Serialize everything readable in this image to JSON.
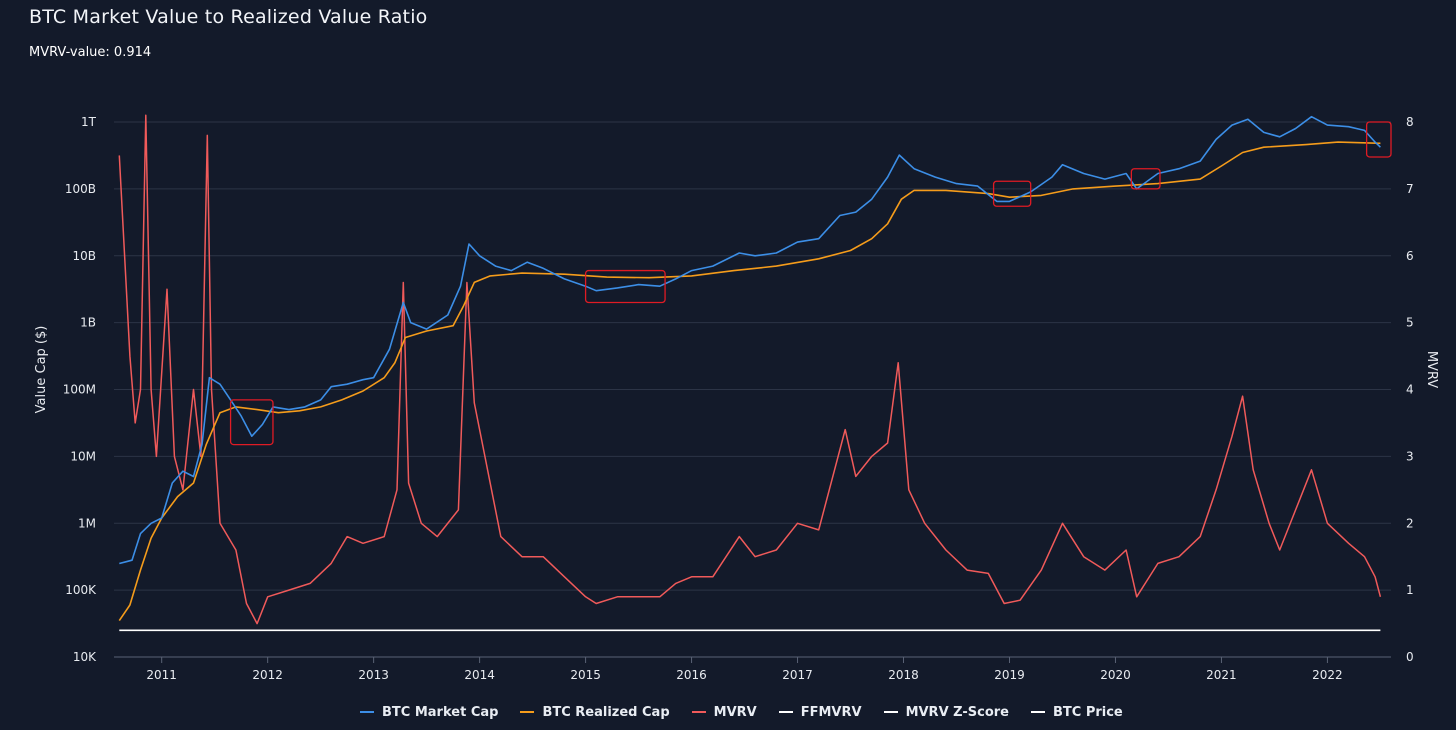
{
  "header": {
    "title": "BTC Market Value to Realized Value Ratio",
    "subtitle": "MVRV-value: 0.914"
  },
  "colors": {
    "background": "#131a2a",
    "grid": "#2c3446",
    "market_cap": "#3c8ee6",
    "realized_cap": "#f59c1b",
    "mvrv": "#f05a5a",
    "ffmvrv": "#ffffff",
    "zscore": "#ffffff",
    "price": "#ffffff",
    "highlight": "#e01b24"
  },
  "chart_data": {
    "type": "line",
    "title": "BTC Market Value to Realized Value Ratio",
    "xlabel": "",
    "ylabel_left": "Value Cap ($)",
    "ylabel_right": "MVRV",
    "y_left_scale": "log",
    "y_left_range": [
      10000,
      1000000000000
    ],
    "y_left_ticks": [
      {
        "value": 10000,
        "label": "10K"
      },
      {
        "value": 100000,
        "label": "100K"
      },
      {
        "value": 1000000,
        "label": "1M"
      },
      {
        "value": 10000000,
        "label": "10M"
      },
      {
        "value": 100000000,
        "label": "100M"
      },
      {
        "value": 1000000000,
        "label": "1B"
      },
      {
        "value": 10000000000,
        "label": "10B"
      },
      {
        "value": 100000000000,
        "label": "100B"
      },
      {
        "value": 1000000000000,
        "label": "1T"
      }
    ],
    "y_right_range": [
      0,
      8
    ],
    "y_right_ticks": [
      0,
      1,
      2,
      3,
      4,
      5,
      6,
      7,
      8
    ],
    "x_range": [
      2010.55,
      2022.6
    ],
    "x_ticks": [
      "2011",
      "2012",
      "2013",
      "2014",
      "2015",
      "2016",
      "2017",
      "2018",
      "2019",
      "2020",
      "2021",
      "2022"
    ],
    "series": [
      {
        "name": "BTC Market Cap",
        "axis": "left",
        "points": [
          [
            2010.6,
            250000
          ],
          [
            2010.72,
            280000
          ],
          [
            2010.8,
            700000
          ],
          [
            2010.9,
            1000000
          ],
          [
            2011.0,
            1200000
          ],
          [
            2011.1,
            4000000
          ],
          [
            2011.2,
            6000000
          ],
          [
            2011.3,
            5000000
          ],
          [
            2011.38,
            15000000
          ],
          [
            2011.45,
            150000000
          ],
          [
            2011.55,
            120000000
          ],
          [
            2011.65,
            70000000
          ],
          [
            2011.75,
            40000000
          ],
          [
            2011.85,
            20000000
          ],
          [
            2011.95,
            30000000
          ],
          [
            2012.05,
            55000000
          ],
          [
            2012.2,
            50000000
          ],
          [
            2012.35,
            55000000
          ],
          [
            2012.5,
            70000000
          ],
          [
            2012.6,
            110000000
          ],
          [
            2012.75,
            120000000
          ],
          [
            2012.9,
            140000000
          ],
          [
            2013.0,
            150000000
          ],
          [
            2013.15,
            400000000
          ],
          [
            2013.28,
            2000000000
          ],
          [
            2013.35,
            1000000000
          ],
          [
            2013.5,
            800000000
          ],
          [
            2013.7,
            1300000000
          ],
          [
            2013.82,
            3500000000
          ],
          [
            2013.9,
            15000000000
          ],
          [
            2014.0,
            10000000000
          ],
          [
            2014.15,
            7000000000
          ],
          [
            2014.3,
            6000000000
          ],
          [
            2014.45,
            8000000000
          ],
          [
            2014.6,
            6500000000
          ],
          [
            2014.8,
            4500000000
          ],
          [
            2015.0,
            3500000000
          ],
          [
            2015.1,
            3000000000
          ],
          [
            2015.3,
            3300000000
          ],
          [
            2015.5,
            3700000000
          ],
          [
            2015.7,
            3500000000
          ],
          [
            2015.85,
            4500000000
          ],
          [
            2016.0,
            6000000000
          ],
          [
            2016.2,
            7000000000
          ],
          [
            2016.45,
            11000000000
          ],
          [
            2016.6,
            10000000000
          ],
          [
            2016.8,
            11000000000
          ],
          [
            2017.0,
            16000000000
          ],
          [
            2017.2,
            18000000000
          ],
          [
            2017.4,
            40000000000
          ],
          [
            2017.55,
            45000000000
          ],
          [
            2017.7,
            70000000000
          ],
          [
            2017.85,
            150000000000
          ],
          [
            2017.96,
            320000000000
          ],
          [
            2018.1,
            200000000000
          ],
          [
            2018.3,
            150000000000
          ],
          [
            2018.5,
            120000000000
          ],
          [
            2018.7,
            110000000000
          ],
          [
            2018.88,
            65000000000
          ],
          [
            2019.0,
            65000000000
          ],
          [
            2019.2,
            90000000000
          ],
          [
            2019.4,
            150000000000
          ],
          [
            2019.5,
            230000000000
          ],
          [
            2019.7,
            170000000000
          ],
          [
            2019.9,
            140000000000
          ],
          [
            2020.1,
            170000000000
          ],
          [
            2020.2,
            100000000000
          ],
          [
            2020.4,
            170000000000
          ],
          [
            2020.6,
            200000000000
          ],
          [
            2020.8,
            260000000000
          ],
          [
            2020.95,
            550000000000
          ],
          [
            2021.1,
            900000000000
          ],
          [
            2021.25,
            1100000000000
          ],
          [
            2021.4,
            700000000000
          ],
          [
            2021.55,
            600000000000
          ],
          [
            2021.7,
            800000000000
          ],
          [
            2021.85,
            1200000000000
          ],
          [
            2022.0,
            900000000000
          ],
          [
            2022.2,
            850000000000
          ],
          [
            2022.35,
            750000000000
          ],
          [
            2022.45,
            500000000000
          ],
          [
            2022.5,
            420000000000
          ]
        ]
      },
      {
        "name": "BTC Realized Cap",
        "axis": "left",
        "points": [
          [
            2010.6,
            35000
          ],
          [
            2010.7,
            60000
          ],
          [
            2010.8,
            200000
          ],
          [
            2010.9,
            600000
          ],
          [
            2011.0,
            1200000
          ],
          [
            2011.15,
            2500000
          ],
          [
            2011.3,
            4000000
          ],
          [
            2011.42,
            15000000
          ],
          [
            2011.55,
            45000000
          ],
          [
            2011.7,
            55000000
          ],
          [
            2011.9,
            50000000
          ],
          [
            2012.1,
            45000000
          ],
          [
            2012.3,
            48000000
          ],
          [
            2012.5,
            55000000
          ],
          [
            2012.7,
            70000000
          ],
          [
            2012.9,
            95000000
          ],
          [
            2013.1,
            150000000
          ],
          [
            2013.2,
            250000000
          ],
          [
            2013.3,
            600000000
          ],
          [
            2013.5,
            750000000
          ],
          [
            2013.75,
            900000000
          ],
          [
            2013.85,
            1800000000
          ],
          [
            2013.95,
            4000000000
          ],
          [
            2014.1,
            5000000000
          ],
          [
            2014.4,
            5500000000
          ],
          [
            2014.8,
            5300000000
          ],
          [
            2015.2,
            4800000000
          ],
          [
            2015.6,
            4700000000
          ],
          [
            2016.0,
            5000000000
          ],
          [
            2016.4,
            6000000000
          ],
          [
            2016.8,
            7000000000
          ],
          [
            2017.2,
            9000000000
          ],
          [
            2017.5,
            12000000000
          ],
          [
            2017.7,
            18000000000
          ],
          [
            2017.85,
            30000000000
          ],
          [
            2017.98,
            70000000000
          ],
          [
            2018.1,
            95000000000
          ],
          [
            2018.4,
            95000000000
          ],
          [
            2018.8,
            85000000000
          ],
          [
            2019.0,
            75000000000
          ],
          [
            2019.3,
            80000000000
          ],
          [
            2019.6,
            100000000000
          ],
          [
            2020.0,
            110000000000
          ],
          [
            2020.4,
            120000000000
          ],
          [
            2020.8,
            140000000000
          ],
          [
            2021.0,
            220000000000
          ],
          [
            2021.2,
            350000000000
          ],
          [
            2021.4,
            420000000000
          ],
          [
            2021.8,
            460000000000
          ],
          [
            2022.1,
            500000000000
          ],
          [
            2022.5,
            480000000000
          ]
        ]
      },
      {
        "name": "MVRV",
        "axis": "right",
        "points": [
          [
            2010.6,
            7.5
          ],
          [
            2010.7,
            4.5
          ],
          [
            2010.75,
            3.5
          ],
          [
            2010.8,
            4.0
          ],
          [
            2010.85,
            8.1
          ],
          [
            2010.9,
            4.0
          ],
          [
            2010.95,
            3.0
          ],
          [
            2011.05,
            5.5
          ],
          [
            2011.12,
            3.0
          ],
          [
            2011.2,
            2.5
          ],
          [
            2011.3,
            4.0
          ],
          [
            2011.37,
            3.0
          ],
          [
            2011.43,
            7.8
          ],
          [
            2011.47,
            4.0
          ],
          [
            2011.55,
            2.0
          ],
          [
            2011.7,
            1.6
          ],
          [
            2011.8,
            0.8
          ],
          [
            2011.9,
            0.5
          ],
          [
            2012.0,
            0.9
          ],
          [
            2012.2,
            1.0
          ],
          [
            2012.4,
            1.1
          ],
          [
            2012.6,
            1.4
          ],
          [
            2012.75,
            1.8
          ],
          [
            2012.9,
            1.7
          ],
          [
            2013.1,
            1.8
          ],
          [
            2013.22,
            2.5
          ],
          [
            2013.28,
            5.6
          ],
          [
            2013.33,
            2.6
          ],
          [
            2013.45,
            2.0
          ],
          [
            2013.6,
            1.8
          ],
          [
            2013.8,
            2.2
          ],
          [
            2013.88,
            5.6
          ],
          [
            2013.95,
            3.8
          ],
          [
            2014.05,
            3.0
          ],
          [
            2014.2,
            1.8
          ],
          [
            2014.4,
            1.5
          ],
          [
            2014.6,
            1.5
          ],
          [
            2014.8,
            1.2
          ],
          [
            2015.0,
            0.9
          ],
          [
            2015.1,
            0.8
          ],
          [
            2015.3,
            0.9
          ],
          [
            2015.5,
            0.9
          ],
          [
            2015.7,
            0.9
          ],
          [
            2015.85,
            1.1
          ],
          [
            2016.0,
            1.2
          ],
          [
            2016.2,
            1.2
          ],
          [
            2016.45,
            1.8
          ],
          [
            2016.6,
            1.5
          ],
          [
            2016.8,
            1.6
          ],
          [
            2017.0,
            2.0
          ],
          [
            2017.2,
            1.9
          ],
          [
            2017.45,
            3.4
          ],
          [
            2017.55,
            2.7
          ],
          [
            2017.7,
            3.0
          ],
          [
            2017.85,
            3.2
          ],
          [
            2017.95,
            4.4
          ],
          [
            2018.05,
            2.5
          ],
          [
            2018.2,
            2.0
          ],
          [
            2018.4,
            1.6
          ],
          [
            2018.6,
            1.3
          ],
          [
            2018.8,
            1.25
          ],
          [
            2018.95,
            0.8
          ],
          [
            2019.1,
            0.85
          ],
          [
            2019.3,
            1.3
          ],
          [
            2019.5,
            2.0
          ],
          [
            2019.7,
            1.5
          ],
          [
            2019.9,
            1.3
          ],
          [
            2020.1,
            1.6
          ],
          [
            2020.2,
            0.9
          ],
          [
            2020.4,
            1.4
          ],
          [
            2020.6,
            1.5
          ],
          [
            2020.8,
            1.8
          ],
          [
            2020.95,
            2.5
          ],
          [
            2021.1,
            3.3
          ],
          [
            2021.2,
            3.9
          ],
          [
            2021.3,
            2.8
          ],
          [
            2021.45,
            2.0
          ],
          [
            2021.55,
            1.6
          ],
          [
            2021.7,
            2.2
          ],
          [
            2021.85,
            2.8
          ],
          [
            2022.0,
            2.0
          ],
          [
            2022.2,
            1.7
          ],
          [
            2022.35,
            1.5
          ],
          [
            2022.45,
            1.2
          ],
          [
            2022.5,
            0.9
          ]
        ]
      },
      {
        "name": "FFMVRV",
        "axis": "right",
        "points": [
          [
            2010.6,
            0.4
          ],
          [
            2022.5,
            0.4
          ]
        ]
      }
    ],
    "legend": [
      "BTC Market Cap",
      "BTC Realized Cap",
      "MVRV",
      "FFMVRV",
      "MVRV Z-Score",
      "BTC Price"
    ],
    "annotations": [
      {
        "type": "highlight-box",
        "x": [
          2011.65,
          2012.05
        ],
        "y": [
          15000000,
          70000000
        ]
      },
      {
        "type": "highlight-box",
        "x": [
          2015.0,
          2015.75
        ],
        "y": [
          2000000000,
          6000000000
        ]
      },
      {
        "type": "highlight-box",
        "x": [
          2018.85,
          2019.2
        ],
        "y": [
          55000000000,
          130000000000
        ]
      },
      {
        "type": "highlight-box",
        "x": [
          2020.15,
          2020.42
        ],
        "y": [
          100000000000,
          200000000000
        ]
      },
      {
        "type": "highlight-box",
        "x": [
          2022.37,
          2022.6
        ],
        "y": [
          300000000000,
          1000000000000
        ]
      }
    ]
  }
}
